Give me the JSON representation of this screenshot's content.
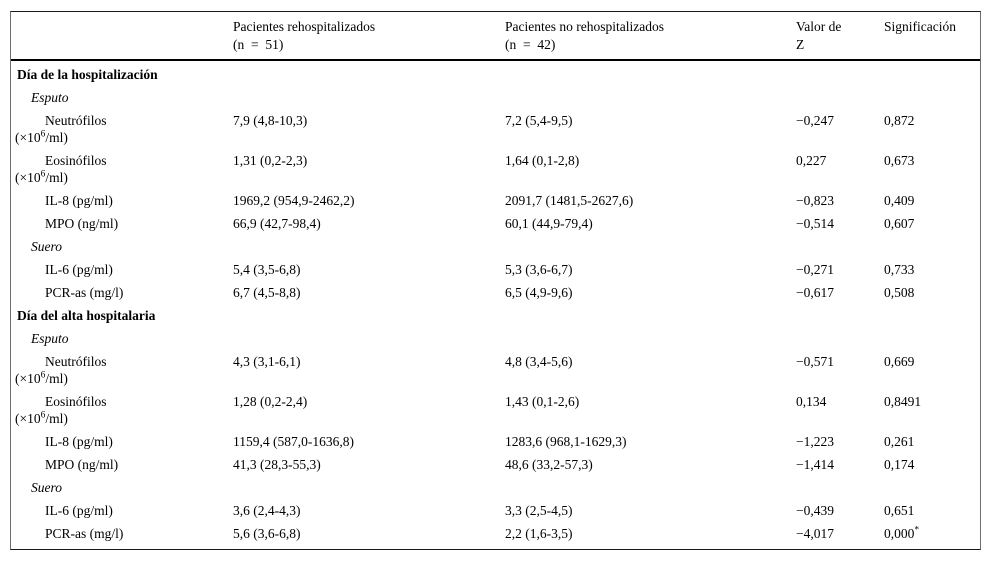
{
  "table": {
    "header": {
      "rehosp_line1": "Pacientes rehospitalizados",
      "rehosp_line2": "(n  =  51)",
      "norehosp_line1": "Pacientes no rehospitalizados",
      "norehosp_line2": "(n  =  42)",
      "z_line1": "Valor de",
      "z_line2": "Z",
      "sig": "Significación"
    },
    "rows": [
      {
        "type": "section",
        "label": "Día de la hospitalización"
      },
      {
        "type": "subsection",
        "label": "Esputo"
      },
      {
        "type": "item",
        "label": "Neutrófilos",
        "unit_pre": "(×10",
        "unit_sup": "6",
        "unit_post": "/ml)",
        "rehosp": "7,9 (4,8-10,3)",
        "norehosp": "7,2 (5,4-9,5)",
        "z": "−0,247",
        "sig": "0,872"
      },
      {
        "type": "item",
        "label": "Eosinófilos",
        "unit_pre": "(×10",
        "unit_sup": "6",
        "unit_post": "/ml)",
        "rehosp": "1,31 (0,2-2,3)",
        "norehosp": "1,64 (0,1-2,8)",
        "z": "0,227",
        "sig": "0,673"
      },
      {
        "type": "item",
        "label": "IL-8 (pg/ml)",
        "rehosp": "1969,2 (954,9-2462,2)",
        "norehosp": "2091,7 (1481,5-2627,6)",
        "z": "−0,823",
        "sig": "0,409"
      },
      {
        "type": "item",
        "label": "MPO (ng/ml)",
        "rehosp": "66,9 (42,7-98,4)",
        "norehosp": "60,1 (44,9-79,4)",
        "z": "−0,514",
        "sig": "0,607"
      },
      {
        "type": "subsection",
        "label": "Suero"
      },
      {
        "type": "item",
        "label": "IL-6 (pg/ml)",
        "rehosp": "5,4 (3,5-6,8)",
        "norehosp": "5,3 (3,6-6,7)",
        "z": "−0,271",
        "sig": "0,733"
      },
      {
        "type": "item",
        "label": "PCR-as (mg/l)",
        "rehosp": "6,7 (4,5-8,8)",
        "norehosp": "6,5 (4,9-9,6)",
        "z": "−0,617",
        "sig": "0,508"
      },
      {
        "type": "section",
        "label": "Día del alta hospitalaria"
      },
      {
        "type": "subsection",
        "label": "Esputo"
      },
      {
        "type": "item",
        "label": "Neutrófilos",
        "unit_pre": "(×10",
        "unit_sup": "6",
        "unit_post": "/ml)",
        "rehosp": "4,3 (3,1-6,1)",
        "norehosp": "4,8 (3,4-5,6)",
        "z": "−0,571",
        "sig": "0,669"
      },
      {
        "type": "item",
        "label": "Eosinófilos",
        "unit_pre": "(×10",
        "unit_sup": "6",
        "unit_post": "/ml)",
        "rehosp": "1,28 (0,2-2,4)",
        "norehosp": "1,43 (0,1-2,6)",
        "z": "0,134",
        "sig": "0,8491"
      },
      {
        "type": "item",
        "label": "IL-8 (pg/ml)",
        "rehosp": "1159,4 (587,0-1636,8)",
        "norehosp": "1283,6 (968,1-1629,3)",
        "z": "−1,223",
        "sig": "0,261"
      },
      {
        "type": "item",
        "label": "MPO (ng/ml)",
        "rehosp": "41,3 (28,3-55,3)",
        "norehosp": "48,6 (33,2-57,3)",
        "z": "−1,414",
        "sig": "0,174"
      },
      {
        "type": "subsection",
        "label": "Suero"
      },
      {
        "type": "item",
        "label": "IL-6 (pg/ml)",
        "rehosp": "3,6 (2,4-4,3)",
        "norehosp": "3,3 (2,5-4,5)",
        "z": "−0,439",
        "sig": "0,651"
      },
      {
        "type": "item",
        "label": "PCR-as (mg/l)",
        "rehosp": "5,6 (3,6-6,8)",
        "norehosp": "2,2 (1,6-3,5)",
        "z": "−4,017",
        "sig": "0,000",
        "sig_sup": "*"
      }
    ]
  }
}
